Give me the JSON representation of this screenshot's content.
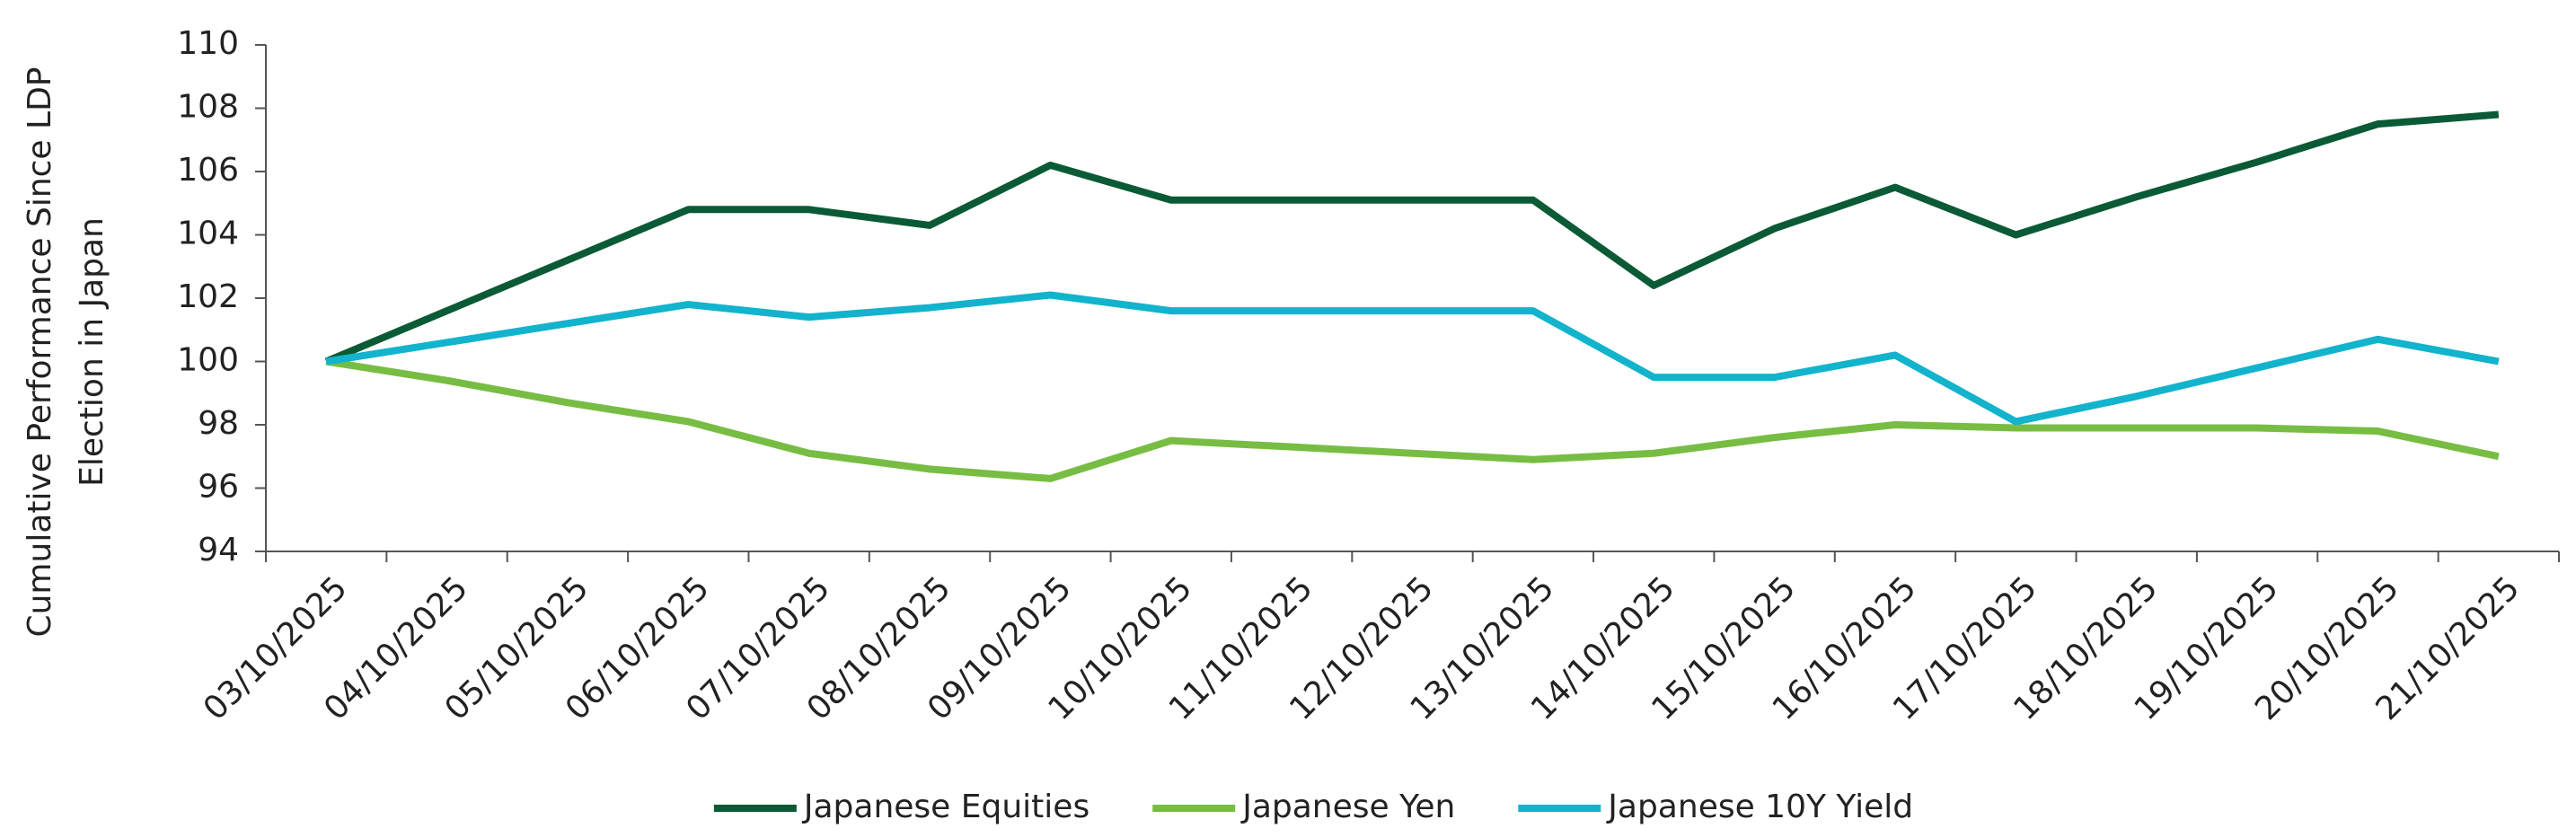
{
  "chart_data": {
    "type": "line",
    "y_label": [
      "Cumulative Performance Since LDP",
      "Election in Japan"
    ],
    "categories": [
      "03/10/2025",
      "04/10/2025",
      "05/10/2025",
      "06/10/2025",
      "07/10/2025",
      "08/10/2025",
      "09/10/2025",
      "10/10/2025",
      "11/10/2025",
      "12/10/2025",
      "13/10/2025",
      "14/10/2025",
      "15/10/2025",
      "16/10/2025",
      "17/10/2025",
      "18/10/2025",
      "19/10/2025",
      "20/10/2025",
      "21/10/2025"
    ],
    "series": [
      {
        "name": "Japanese Equities",
        "color": "#0b5a36",
        "values": [
          100,
          101.6,
          103.2,
          104.8,
          104.8,
          104.3,
          106.2,
          105.1,
          105.1,
          105.1,
          105.1,
          102.4,
          104.2,
          105.5,
          104.0,
          105.2,
          106.3,
          107.5,
          107.8
        ]
      },
      {
        "name": "Japanese Yen",
        "color": "#77bd43",
        "values": [
          100,
          99.4,
          98.7,
          98.1,
          97.1,
          96.6,
          96.3,
          97.5,
          97.3,
          97.1,
          96.9,
          97.1,
          97.6,
          98.0,
          97.9,
          97.9,
          97.9,
          97.8,
          97.0
        ]
      },
      {
        "name": "Japanese 10Y Yield",
        "color": "#12b3cc",
        "values": [
          100,
          100.6,
          101.2,
          101.8,
          101.4,
          101.7,
          102.1,
          101.6,
          101.6,
          101.6,
          101.6,
          99.5,
          99.5,
          100.2,
          98.1,
          98.9,
          99.8,
          100.7,
          100.0
        ]
      }
    ],
    "ylim": [
      94,
      110
    ],
    "yticks": [
      94,
      96,
      98,
      100,
      102,
      104,
      106,
      108,
      110
    ],
    "grid": false,
    "legend": "bottom"
  }
}
